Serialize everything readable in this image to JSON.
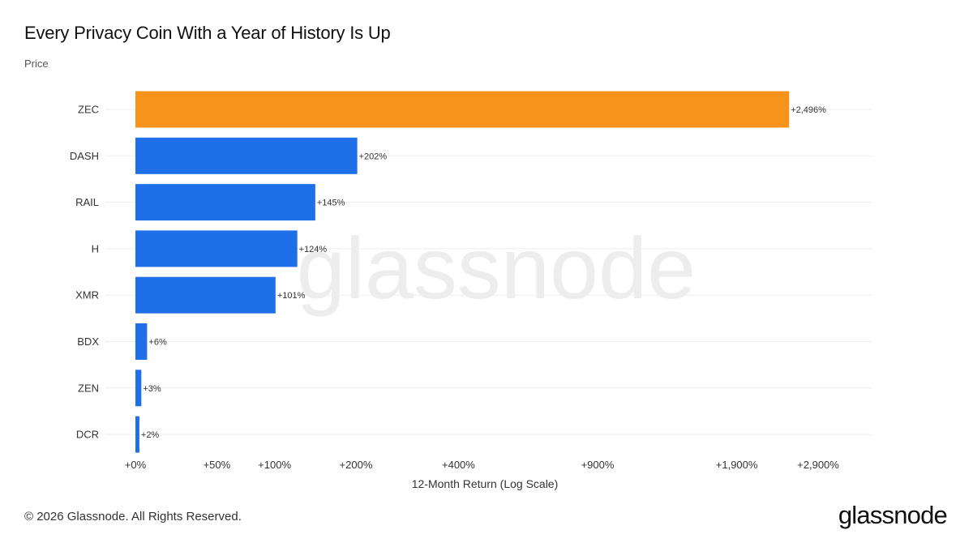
{
  "title": "Every Privacy Coin With a Year of History Is Up",
  "subtitle": "Price",
  "watermark": "glassnode",
  "footer": {
    "copyright": "© 2026 Glassnode. All Rights Reserved.",
    "logo": "glassnode"
  },
  "colors": {
    "highlight": "#F7931A",
    "bar": "#1E6FE8",
    "grid": "#ECEEF2",
    "watermark": "#EDEDED"
  },
  "chart_data": {
    "type": "bar",
    "orientation": "horizontal",
    "scale": "log",
    "categories": [
      "ZEC",
      "DASH",
      "RAIL",
      "H",
      "XMR",
      "BDX",
      "ZEN",
      "DCR"
    ],
    "values": [
      2496,
      202,
      145,
      124,
      101,
      6,
      3,
      2
    ],
    "data_labels": [
      "+2,496%",
      "+202%",
      "+145%",
      "+124%",
      "+101%",
      "+6%",
      "+3%",
      "+2%"
    ],
    "highlight_index": 0,
    "x_ticks": [
      0,
      50,
      100,
      200,
      400,
      900,
      1900,
      2900
    ],
    "x_tick_labels": [
      "+0%",
      "+50%",
      "+100%",
      "+200%",
      "+400%",
      "+900%",
      "+1,900%",
      "+2,900%"
    ],
    "xlabel": "12-Month Return (Log Scale)",
    "ylabel": "",
    "xlim": [
      0,
      2900
    ],
    "grid": true,
    "legend": "none"
  }
}
